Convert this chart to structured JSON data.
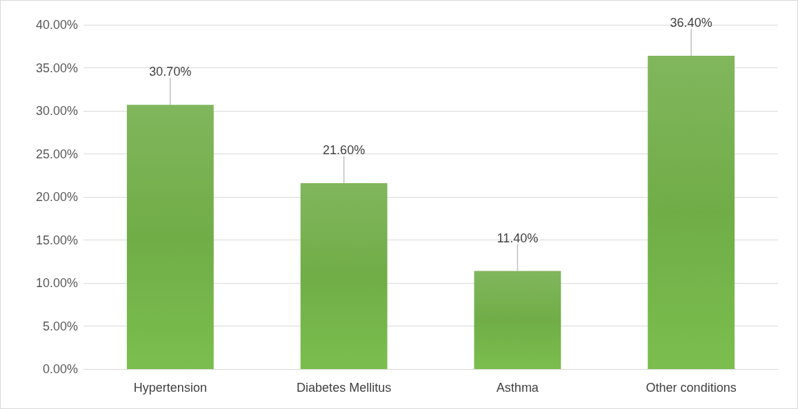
{
  "chart_data": {
    "type": "bar",
    "categories": [
      "Hypertension",
      "Diabetes Mellitus",
      "Asthma",
      "Other conditions"
    ],
    "values": [
      30.7,
      21.6,
      11.4,
      36.4
    ],
    "value_labels": [
      "30.70%",
      "21.60%",
      "11.40%",
      "36.40%"
    ],
    "color": "#70ad47",
    "ylim": [
      0,
      40
    ],
    "yticks": [
      {
        "value": 0,
        "label": "0.00%"
      },
      {
        "value": 5,
        "label": "5.00%"
      },
      {
        "value": 10,
        "label": "10.00%"
      },
      {
        "value": 15,
        "label": "15.00%"
      },
      {
        "value": 20,
        "label": "20.00%"
      },
      {
        "value": 25,
        "label": "25.00%"
      },
      {
        "value": 30,
        "label": "30.00%"
      },
      {
        "value": 35,
        "label": "35.00%"
      },
      {
        "value": 40,
        "label": "40.00%"
      }
    ],
    "grid": "y"
  }
}
